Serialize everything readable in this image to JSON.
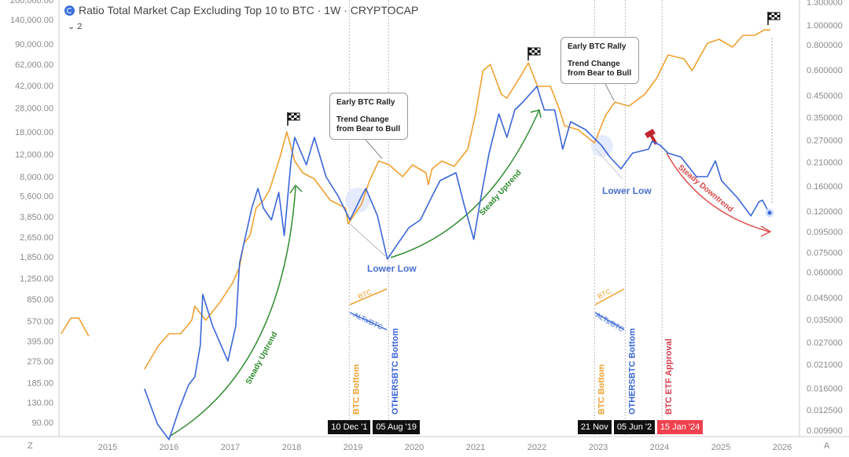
{
  "header": {
    "title": "Ratio Total Market Cap Excluding Top 10 to BTC · 1W · CRYPTOCAP",
    "collapse_label": "2",
    "corner_left": "Z",
    "corner_right": "A"
  },
  "colors": {
    "btc": "#f0a030",
    "alts_btc": "#3a66d8",
    "uptrend": "#2e8b2e",
    "downtrend": "#e05050",
    "etf": "#d63c4c"
  },
  "chart_data": {
    "type": "line",
    "title": "Ratio Total Market Cap Excluding Top 10 to BTC · 1W · CRYPTOCAP",
    "x_ticks": [
      "2015",
      "2016",
      "2017",
      "2018",
      "2019",
      "2020",
      "2021",
      "2022",
      "2023",
      "2024",
      "2025",
      "2026"
    ],
    "x_range": [
      2014.2,
      2026.5
    ],
    "left_axis": {
      "scale": "log",
      "ticks": [
        "200,000.00",
        "140,000.00",
        "90,000.00",
        "62,000.00",
        "42,000.00",
        "28,000.00",
        "18,000.00",
        "12,000.00",
        "8,000.00",
        "5,600.00",
        "3,850.00",
        "2,650.00",
        "1,850.00",
        "1,250.00",
        "850.00",
        "570.00",
        "395.00",
        "275.00",
        "185.00",
        "130.00",
        "90.00"
      ]
    },
    "right_axis": {
      "scale": "log",
      "ticks": [
        "1.300000",
        "1.000000",
        "0.800000",
        "0.600000",
        "0.450000",
        "0.350000",
        "0.270000",
        "0.210000",
        "0.160000",
        "0.120000",
        "0.095000",
        "0.075000",
        "0.060000",
        "0.045000",
        "0.035000",
        "0.027000",
        "0.021000",
        "0.016000",
        "0.012500",
        "0.009900"
      ]
    },
    "grid": false,
    "series": [
      {
        "name": "BTC",
        "axis": "left",
        "color": "#f0a030",
        "segments": [
          [
            [
              2014.24,
              454
            ],
            [
              2014.4,
              604
            ],
            [
              2014.53,
              604
            ],
            [
              2014.69,
              434
            ]
          ],
          [
            [
              2015.6,
              238
            ],
            [
              2015.83,
              366
            ],
            [
              2016.0,
              454
            ],
            [
              2016.19,
              454
            ],
            [
              2016.37,
              580
            ],
            [
              2016.42,
              750
            ],
            [
              2016.6,
              580
            ],
            [
              2016.83,
              805
            ],
            [
              2017.04,
              1151
            ],
            [
              2017.15,
              1535
            ],
            [
              2017.22,
              2360
            ],
            [
              2017.32,
              2723
            ],
            [
              2017.42,
              4498
            ],
            [
              2017.54,
              5190
            ],
            [
              2017.64,
              6252
            ],
            [
              2017.81,
              11400
            ],
            [
              2017.92,
              18030
            ],
            [
              2018.05,
              10620
            ],
            [
              2018.18,
              8570
            ],
            [
              2018.37,
              7640
            ],
            [
              2018.63,
              5190
            ],
            [
              2018.88,
              4498
            ],
            [
              2018.92,
              3373
            ],
            [
              2019.14,
              4830
            ],
            [
              2019.27,
              7410
            ],
            [
              2019.42,
              10620
            ],
            [
              2019.59,
              9890
            ],
            [
              2019.81,
              7970
            ],
            [
              2019.97,
              9890
            ],
            [
              2020.19,
              8570
            ],
            [
              2020.23,
              6900
            ],
            [
              2020.29,
              9200
            ],
            [
              2020.45,
              10620
            ],
            [
              2020.65,
              9600
            ],
            [
              2020.87,
              13150
            ],
            [
              2021.0,
              25060
            ],
            [
              2021.12,
              55200
            ],
            [
              2021.24,
              61800
            ],
            [
              2021.42,
              35900
            ],
            [
              2021.51,
              33400
            ],
            [
              2021.71,
              47800
            ],
            [
              2021.86,
              63700
            ],
            [
              2022.01,
              41400
            ],
            [
              2022.22,
              41400
            ],
            [
              2022.37,
              26900
            ],
            [
              2022.45,
              20200
            ],
            [
              2022.67,
              18800
            ],
            [
              2022.94,
              14760
            ],
            [
              2023.12,
              24400
            ],
            [
              2023.27,
              31100
            ],
            [
              2023.5,
              28900
            ],
            [
              2023.76,
              35900
            ],
            [
              2023.95,
              47800
            ],
            [
              2024.14,
              73450
            ],
            [
              2024.4,
              68400
            ],
            [
              2024.53,
              55200
            ],
            [
              2024.78,
              91000
            ],
            [
              2024.97,
              97800
            ],
            [
              2025.19,
              84700
            ],
            [
              2025.36,
              105100
            ],
            [
              2025.55,
              105100
            ],
            [
              2025.71,
              116100
            ],
            [
              2025.81,
              116100
            ]
          ]
        ]
      },
      {
        "name": "ALTs/BTC",
        "axis": "right",
        "color": "#3a66d8",
        "segments": [
          [
            [
              2015.6,
              0.0159
            ],
            [
              2015.81,
              0.01065
            ],
            [
              2016.0,
              0.00891
            ],
            [
              2016.17,
              0.01274
            ],
            [
              2016.32,
              0.01665
            ],
            [
              2016.42,
              0.0182
            ],
            [
              2016.51,
              0.0261
            ],
            [
              2016.55,
              0.0466
            ],
            [
              2016.71,
              0.0326
            ],
            [
              2016.96,
              0.0218
            ],
            [
              2017.09,
              0.0326
            ],
            [
              2017.15,
              0.0666
            ],
            [
              2017.35,
              0.1245
            ],
            [
              2017.45,
              0.1557
            ],
            [
              2017.54,
              0.1245
            ],
            [
              2017.67,
              0.1089
            ],
            [
              2017.79,
              0.1489
            ],
            [
              2017.88,
              0.091
            ],
            [
              2017.99,
              0.213
            ],
            [
              2018.05,
              0.2786
            ],
            [
              2018.24,
              0.2037
            ],
            [
              2018.37,
              0.2786
            ],
            [
              2018.56,
              0.178
            ],
            [
              2018.76,
              0.1424
            ],
            [
              2018.95,
              0.1089
            ],
            [
              2019.14,
              0.1424
            ],
            [
              2019.21,
              0.1557
            ],
            [
              2019.4,
              0.1139
            ],
            [
              2019.56,
              0.0696
            ],
            [
              2019.78,
              0.0871
            ],
            [
              2019.91,
              0.0995
            ],
            [
              2020.1,
              0.1089
            ],
            [
              2020.29,
              0.1424
            ],
            [
              2020.42,
              0.1702
            ],
            [
              2020.68,
              0.1862
            ],
            [
              2020.81,
              0.1302
            ],
            [
              2020.97,
              0.0871
            ],
            [
              2021.09,
              0.1424
            ],
            [
              2021.22,
              0.2328
            ],
            [
              2021.38,
              0.3642
            ],
            [
              2021.51,
              0.2786
            ],
            [
              2021.64,
              0.3808
            ],
            [
              2021.77,
              0.4162
            ],
            [
              2022.0,
              0.4977
            ],
            [
              2022.12,
              0.3808
            ],
            [
              2022.29,
              0.3808
            ],
            [
              2022.42,
              0.2434
            ],
            [
              2022.55,
              0.3328
            ],
            [
              2022.79,
              0.3044
            ],
            [
              2023.05,
              0.2547
            ],
            [
              2023.19,
              0.2227
            ],
            [
              2023.37,
              0.1946
            ],
            [
              2023.56,
              0.2328
            ],
            [
              2023.82,
              0.2434
            ],
            [
              2023.88,
              0.2662
            ],
            [
              2024.01,
              0.2547
            ],
            [
              2024.14,
              0.2328
            ],
            [
              2024.35,
              0.2227
            ],
            [
              2024.6,
              0.178
            ],
            [
              2024.78,
              0.178
            ],
            [
              2024.91,
              0.213
            ],
            [
              2025.01,
              0.1702
            ],
            [
              2025.27,
              0.14
            ],
            [
              2025.49,
              0.1139
            ],
            [
              2025.62,
              0.1337
            ],
            [
              2025.68,
              0.1361
            ],
            [
              2025.78,
              0.119
            ]
          ]
        ]
      }
    ],
    "event_lines": [
      {
        "label": "BTC Bottom",
        "date_label": "10 Dec '1",
        "x": 2018.94,
        "color": "#f0a030"
      },
      {
        "label": "OTHERSBTC Bottom",
        "date_label": "05 Aug '19",
        "x": 2019.58,
        "color": "#3a66d8"
      },
      {
        "label": "BTC Bottom",
        "date_label": "21 Nov",
        "x": 2022.94,
        "color": "#f0a030"
      },
      {
        "label": "OTHERSBTC Bottom",
        "date_label": "05 Jun '2",
        "x": 2023.44,
        "color": "#3a66d8"
      },
      {
        "label": "BTC ETF Approval",
        "date_label": "15 Jan '24",
        "x": 2024.04,
        "color": "#d63c4c"
      }
    ],
    "annotations": {
      "callout_1": {
        "line1": "Early BTC Rally",
        "line2": "Trend Change",
        "line3": "from Bear to Bull"
      },
      "callout_2": {
        "line1": "Early BTC Rally",
        "line2": "Trend Change",
        "line3": "from Bear to Bull"
      },
      "lower_low_1": "Lower Low",
      "lower_low_2": "Lower Low",
      "uptrend_1": "Steady Uptrend",
      "uptrend_2": "Steady Uptrend",
      "downtrend": "Steady Downtrend",
      "mini_legend_btc": "BTC",
      "mini_legend_alts": "ALTs/BTC"
    }
  }
}
